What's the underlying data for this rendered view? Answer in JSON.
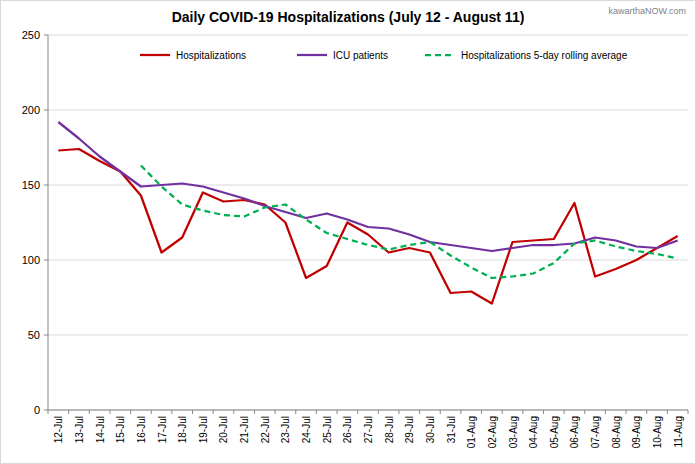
{
  "chart_data": {
    "type": "line",
    "title": "Daily COVID-19 Hospitalizations (July 12 - August 11)",
    "annotations": [
      "kawarthaNOW.com"
    ],
    "categories": [
      "12-Jul",
      "13-Jul",
      "14-Jul",
      "15-Jul",
      "16-Jul",
      "17-Jul",
      "18-Jul",
      "19-Jul",
      "20-Jul",
      "21-Jul",
      "22-Jul",
      "23-Jul",
      "24-Jul",
      "25-Jul",
      "26-Jul",
      "27-Jul",
      "28-Jul",
      "29-Jul",
      "30-Jul",
      "31-Jul",
      "01-Aug",
      "02-Aug",
      "03-Aug",
      "04-Aug",
      "05-Aug",
      "06-Aug",
      "07-Aug",
      "08-Aug",
      "09-Aug",
      "10-Aug",
      "11-Aug"
    ],
    "series": [
      {
        "name": "Hospitalizations",
        "color": "#c00000",
        "line_style": "solid",
        "values": [
          173,
          174,
          166,
          159,
          143,
          105,
          115,
          145,
          139,
          140,
          137,
          125,
          88,
          96,
          125,
          117,
          105,
          108,
          105,
          78,
          79,
          71,
          112,
          113,
          114,
          138,
          89,
          94,
          100,
          108,
          116
        ]
      },
      {
        "name": "ICU patients",
        "color": "#7030a0",
        "line_style": "solid",
        "values": [
          192,
          181,
          169,
          159,
          149,
          150,
          151,
          149,
          145,
          141,
          136,
          132,
          128,
          131,
          127,
          122,
          121,
          117,
          112,
          110,
          108,
          106,
          108,
          110,
          110,
          111,
          115,
          113,
          109,
          108,
          113
        ]
      },
      {
        "name": "Hospitalizations 5-day rolling average",
        "color": "#00b050",
        "line_style": "dashed",
        "values": [
          null,
          null,
          null,
          null,
          163,
          149,
          137,
          133,
          130,
          129,
          135,
          137,
          127,
          118,
          114,
          110,
          107,
          110,
          112,
          103,
          95,
          88,
          89,
          91,
          98,
          111,
          113,
          109,
          106,
          104,
          101
        ]
      }
    ],
    "ylim": [
      0,
      250
    ],
    "yticks": [
      0,
      50,
      100,
      150,
      200,
      250
    ],
    "grid": true,
    "legend": "top"
  }
}
